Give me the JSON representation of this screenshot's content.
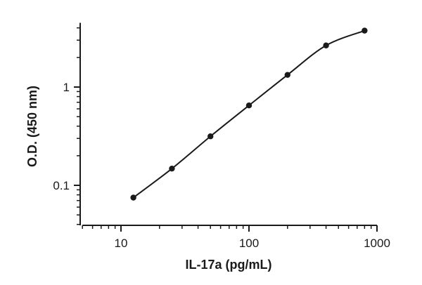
{
  "chart_data": {
    "type": "scatter",
    "xlabel": "IL-17a (pg/mL)",
    "ylabel": "O.D. (450 nm)",
    "x_scale": "log",
    "y_scale": "log",
    "xlim": [
      5,
      1000
    ],
    "ylim": [
      0.04,
      4.5
    ],
    "x_ticks": [
      10,
      100,
      1000
    ],
    "x_tick_labels": [
      "10",
      "100",
      "1000"
    ],
    "y_ticks": [
      0.1,
      1
    ],
    "y_tick_labels": [
      "0.1",
      "1"
    ],
    "grid": false,
    "legend": "none",
    "series": [
      {
        "points": [
          {
            "x": 12.5,
            "y": 0.075
          },
          {
            "x": 25,
            "y": 0.148
          },
          {
            "x": 50,
            "y": 0.315
          },
          {
            "x": 100,
            "y": 0.65
          },
          {
            "x": 200,
            "y": 1.33
          },
          {
            "x": 400,
            "y": 2.65
          },
          {
            "x": 800,
            "y": 3.75
          }
        ],
        "fit": "four-parameter logistic"
      }
    ]
  }
}
